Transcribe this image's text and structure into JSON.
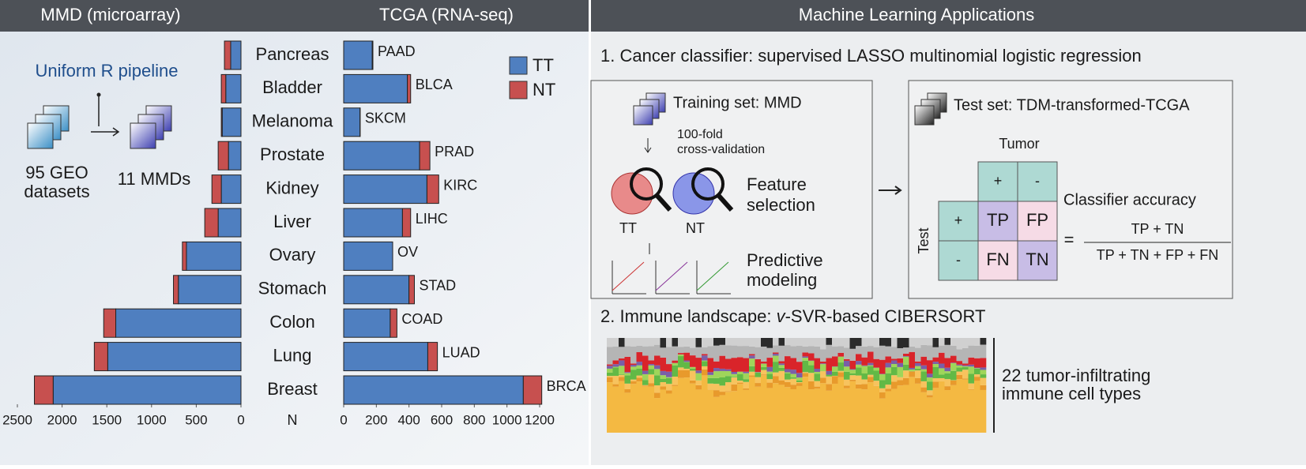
{
  "chart_data": [
    {
      "type": "bar",
      "orientation": "horizontal",
      "stacked": true,
      "title": "MMD (microarray)",
      "xlabel": "N",
      "categories": [
        "Pancreas",
        "Bladder",
        "Melanoma",
        "Prostate",
        "Kidney",
        "Liver",
        "Ovary",
        "Stomach",
        "Colon",
        "Lung",
        "Breast"
      ],
      "series": [
        {
          "name": "TT",
          "color": "#4f7fc0",
          "values": [
            115,
            170,
            210,
            140,
            220,
            255,
            610,
            700,
            1400,
            1490,
            2100
          ]
        },
        {
          "name": "NT",
          "color": "#c7504f",
          "values": [
            70,
            50,
            10,
            115,
            105,
            150,
            45,
            55,
            135,
            150,
            210
          ]
        }
      ],
      "xlim": [
        2500,
        0
      ],
      "xticks": [
        2500,
        2000,
        1500,
        1000,
        500,
        0
      ]
    },
    {
      "type": "bar",
      "orientation": "horizontal",
      "stacked": true,
      "title": "TCGA (RNA-seq)",
      "categories": [
        "PAAD",
        "BLCA",
        "SKCM",
        "PRAD",
        "KIRC",
        "LIHC",
        "OV",
        "STAD",
        "COAD",
        "LUAD",
        "BRCA"
      ],
      "series": [
        {
          "color": "#4f7fc0",
          "values": [
            175,
            390,
            100,
            465,
            510,
            360,
            300,
            400,
            285,
            515,
            1100
          ]
        },
        {
          "color": "#c7504f",
          "values": [
            4,
            20,
            1,
            63,
            72,
            50,
            0,
            33,
            41,
            59,
            113
          ]
        }
      ],
      "xlim": [
        0,
        1200
      ],
      "xticks": [
        0,
        200,
        400,
        600,
        800,
        1000,
        1200
      ]
    }
  ],
  "pipeline": {
    "title": "Uniform R pipeline",
    "source": [
      "95 GEO",
      "datasets"
    ],
    "result": "11 MMDs"
  },
  "right": {
    "title": "Machine Learning Applications",
    "classifier": {
      "heading": "1. Cancer classifier: supervised LASSO multinomial logistic regression",
      "training": "Training set: MMD",
      "cv": [
        "100-fold",
        "cross-validation"
      ],
      "feature": [
        "Feature",
        "selection"
      ],
      "groups": [
        "TT",
        "NT"
      ],
      "predictive": [
        "Predictive",
        "modeling"
      ],
      "test": "Test set: TDM-transformed-TCGA",
      "tumor": "Tumor",
      "test_axis": "Test",
      "signs": [
        "+",
        "-",
        "+",
        "-"
      ],
      "cells": [
        "TP",
        "FP",
        "FN",
        "TN"
      ],
      "accuracy": "Classifier accuracy",
      "equals": "=",
      "numerator": "TP + TN",
      "denominator": "TP + TN + FP + FN"
    },
    "immune": {
      "heading_pre": "2. Immune landscape: ",
      "heading_v": "v",
      "heading_post": "-SVR-based CIBERSORT",
      "caption": [
        "22 tumor-infiltrating",
        "immune cell types"
      ]
    }
  }
}
